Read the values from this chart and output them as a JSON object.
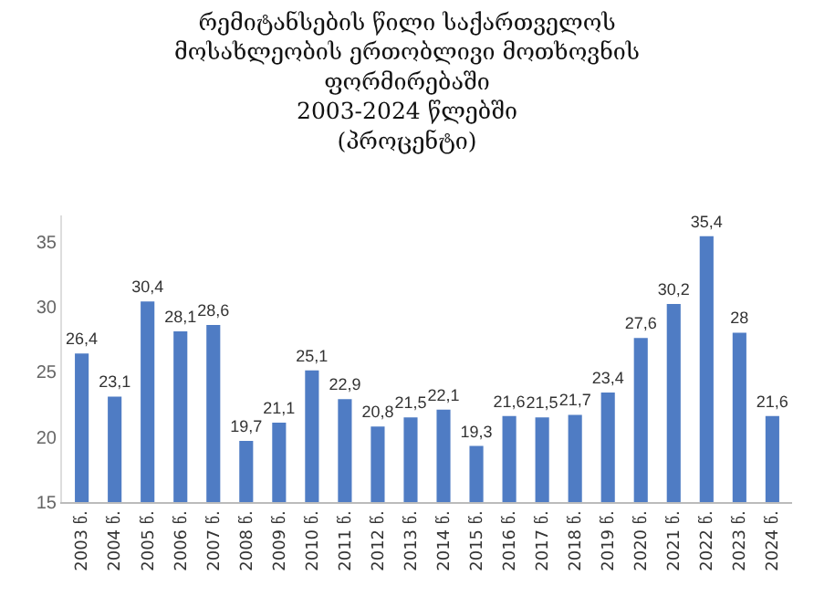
{
  "chart_data": {
    "type": "bar",
    "title": "რემიტანსების წილი საქართველოს\nმოსახლეობის ერთობლივი მოთხოვნის\nფორმირებაში\n2003-2024 წლებში\n(პროცენტი)",
    "categories": [
      "2003 წ.",
      "2004 წ.",
      "2005 წ.",
      "2006 წ.",
      "2007 წ.",
      "2008 წ.",
      "2009 წ.",
      "2010 წ.",
      "2011 წ.",
      "2012 წ.",
      "2013 წ.",
      "2014 წ.",
      "2015 წ.",
      "2016 წ.",
      "2017 წ.",
      "2018 წ.",
      "2019 წ.",
      "2020 წ.",
      "2021 წ.",
      "2022 წ.",
      "2023 წ.",
      "2024 წ."
    ],
    "values": [
      26.4,
      23.1,
      30.4,
      28.1,
      28.6,
      19.7,
      21.1,
      25.1,
      22.9,
      20.8,
      21.5,
      22.1,
      19.3,
      21.6,
      21.5,
      21.7,
      23.4,
      27.6,
      30.2,
      35.4,
      28,
      21.6
    ],
    "value_labels": [
      "26,4",
      "23,1",
      "30,4",
      "28,1",
      "28,6",
      "19,7",
      "21,1",
      "25,1",
      "22,9",
      "20,8",
      "21,5",
      "22,1",
      "19,3",
      "21,6",
      "21,5",
      "21,7",
      "23,4",
      "27,6",
      "30,2",
      "35,4",
      "28",
      "21,6"
    ],
    "color": "#4f7cc4",
    "ylim": [
      15,
      37
    ],
    "yticks": [
      15,
      20,
      25,
      30,
      35
    ],
    "grid": false
  }
}
